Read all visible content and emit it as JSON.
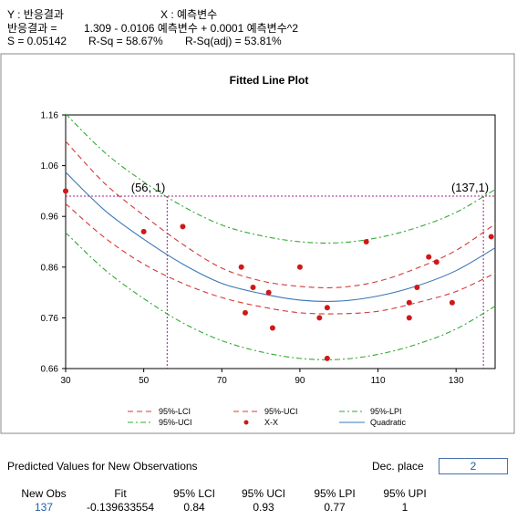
{
  "header": {
    "y_line": "Y : 반응결과",
    "x_line": "X : 예측변수",
    "eq_label": "반응결과 =",
    "eq_value": "1.309 - 0.0106 예측변수 + 0.0001 예측변수^2",
    "s_value": "S = 0.05142",
    "rsq": "R-Sq = 58.67%",
    "rsq_adj": "R-Sq(adj) = 53.81%"
  },
  "chart_data": {
    "type": "line",
    "title": "Fitted Line Plot",
    "xlim": [
      30,
      140
    ],
    "ylim": [
      0.66,
      1.16
    ],
    "x_ticks": [
      "30",
      "50",
      "70",
      "90",
      "110",
      "130"
    ],
    "x_tick_values": [
      30,
      50,
      70,
      90,
      110,
      130
    ],
    "y_ticks": [
      "1.16",
      "1.06",
      "0.96",
      "0.86",
      "0.76",
      "0.66"
    ],
    "y_tick_values": [
      1.16,
      1.06,
      0.96,
      0.86,
      0.76,
      0.66
    ],
    "grid": false,
    "x": [
      30,
      40,
      50,
      60,
      70,
      80,
      90,
      100,
      110,
      120,
      130,
      140
    ],
    "series": [
      {
        "name": "Quadratic",
        "color": "#3a78b8",
        "dash": "solid",
        "values": [
          1.047,
          0.972,
          0.915,
          0.866,
          0.828,
          0.808,
          0.795,
          0.793,
          0.803,
          0.823,
          0.853,
          0.898
        ]
      },
      {
        "name": "95%-LCI",
        "color": "#d33a3a",
        "dash": "dashed",
        "values": [
          0.985,
          0.918,
          0.866,
          0.828,
          0.8,
          0.782,
          0.77,
          0.768,
          0.773,
          0.79,
          0.812,
          0.848
        ]
      },
      {
        "name": "95%-UCI",
        "color": "#d33a3a",
        "dash": "dashed",
        "values": [
          1.108,
          1.025,
          0.962,
          0.905,
          0.858,
          0.833,
          0.822,
          0.82,
          0.832,
          0.858,
          0.893,
          0.945
        ]
      },
      {
        "name": "95%-LPI",
        "color": "#33aa33",
        "dash": "dashdot",
        "values": [
          1.162,
          1.086,
          1.028,
          0.98,
          0.943,
          0.922,
          0.91,
          0.908,
          0.918,
          0.938,
          0.968,
          1.013
        ]
      },
      {
        "name": "95%-UCI",
        "color": "#33aa33",
        "dash": "dashdot",
        "values": [
          0.928,
          0.855,
          0.798,
          0.75,
          0.715,
          0.693,
          0.68,
          0.678,
          0.688,
          0.708,
          0.738,
          0.783
        ]
      }
    ],
    "points": {
      "name": "X-X",
      "color": "#d01818",
      "x": [
        30,
        50,
        60,
        75,
        76,
        78,
        82,
        83,
        90,
        95,
        97,
        97,
        107,
        118,
        118,
        120,
        123,
        125,
        129,
        139
      ],
      "y": [
        1.01,
        0.93,
        0.94,
        0.86,
        0.77,
        0.82,
        0.81,
        0.74,
        0.86,
        0.76,
        0.68,
        0.78,
        0.91,
        0.79,
        0.76,
        0.82,
        0.88,
        0.87,
        0.79,
        0.92
      ]
    },
    "reference": {
      "y": 1.0,
      "x_left": 56,
      "x_right": 137,
      "label_left": "(56, 1)",
      "label_right": "(137,1)",
      "color": "#a0208a"
    },
    "legend": {
      "placement": "bottom",
      "entries": [
        {
          "label": "95%-LCI",
          "kind": "dashed",
          "color": "#d33a3a"
        },
        {
          "label": "95%-UCI",
          "kind": "dashed",
          "color": "#d33a3a"
        },
        {
          "label": "95%-LPI",
          "kind": "dashdot",
          "color": "#33aa33"
        },
        {
          "label": "95%-UCI",
          "kind": "dashdot",
          "color": "#33aa33"
        },
        {
          "label": "X-X",
          "kind": "marker",
          "color": "#d01818"
        },
        {
          "label": "Quadratic",
          "kind": "solid",
          "color": "#3a78b8"
        }
      ]
    }
  },
  "predicted": {
    "title": "Predicted Values for New Observations",
    "dec_label": "Dec. place",
    "dec_value": "2",
    "headers": [
      "New Obs",
      "Fit",
      "95% LCI",
      "95% UCI",
      "95% LPI",
      "95% UPI"
    ],
    "values": [
      "137",
      "-0.139633554",
      "0.84",
      "0.93",
      "0.77",
      "1"
    ]
  }
}
